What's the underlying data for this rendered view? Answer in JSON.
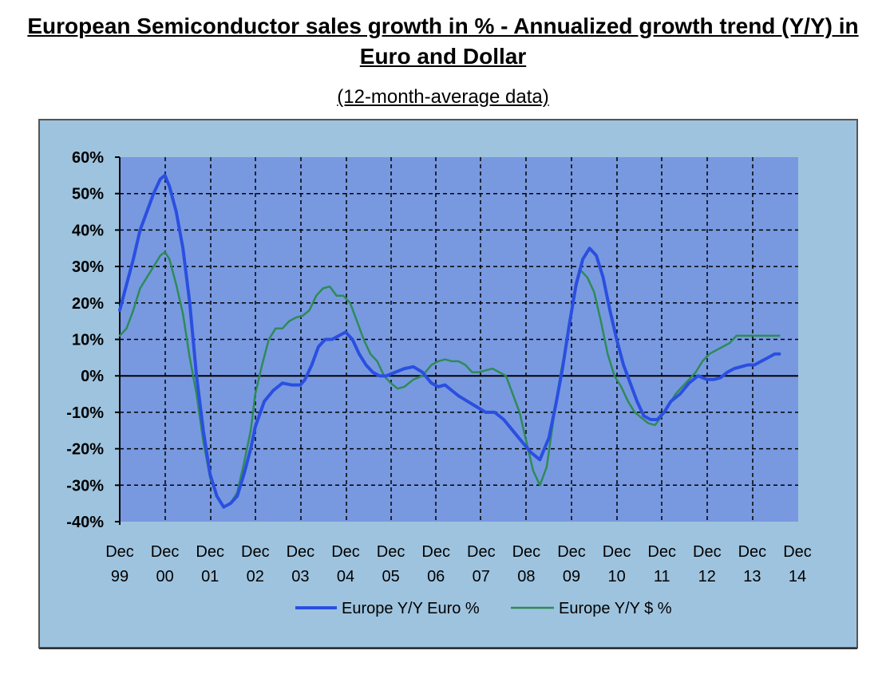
{
  "chart_data": {
    "type": "line",
    "title": "European Semiconductor sales growth in % - Annualized growth trend (Y/Y) in Euro and Dollar",
    "subtitle": "(12-month-average data)",
    "xlabel": "",
    "ylabel": "",
    "ylim": [
      -40,
      60
    ],
    "xlim": [
      0,
      15
    ],
    "y_ticks": [
      "60%",
      "50%",
      "40%",
      "30%",
      "20%",
      "10%",
      "0%",
      "-10%",
      "-20%",
      "-30%",
      "-40%"
    ],
    "x_ticks": [
      {
        "line1": "Dec",
        "line2": "99"
      },
      {
        "line1": "Dec",
        "line2": "00"
      },
      {
        "line1": "Dec",
        "line2": "01"
      },
      {
        "line1": "Dec",
        "line2": "02"
      },
      {
        "line1": "Dec",
        "line2": "03"
      },
      {
        "line1": "Dec",
        "line2": "04"
      },
      {
        "line1": "Dec",
        "line2": "05"
      },
      {
        "line1": "Dec",
        "line2": "06"
      },
      {
        "line1": "Dec",
        "line2": "07"
      },
      {
        "line1": "Dec",
        "line2": "08"
      },
      {
        "line1": "Dec",
        "line2": "09"
      },
      {
        "line1": "Dec",
        "line2": "10"
      },
      {
        "line1": "Dec",
        "line2": "11"
      },
      {
        "line1": "Dec",
        "line2": "12"
      },
      {
        "line1": "Dec",
        "line2": "13"
      },
      {
        "line1": "Dec",
        "line2": "14"
      }
    ],
    "grid": true,
    "legend_position": "bottom",
    "series": [
      {
        "name": "Europe Y/Y Euro %",
        "color": "#2a4fe0",
        "x": [
          0,
          0.15,
          0.3,
          0.45,
          0.6,
          0.75,
          0.9,
          1.0,
          1.1,
          1.25,
          1.4,
          1.55,
          1.7,
          1.85,
          2.0,
          2.15,
          2.3,
          2.45,
          2.6,
          2.75,
          2.9,
          3.0,
          3.2,
          3.4,
          3.6,
          3.8,
          4.0,
          4.1,
          4.25,
          4.4,
          4.55,
          4.7,
          4.85,
          5.0,
          5.15,
          5.3,
          5.45,
          5.6,
          5.75,
          5.9,
          6.1,
          6.3,
          6.5,
          6.7,
          6.9,
          7.05,
          7.2,
          7.35,
          7.5,
          7.7,
          7.9,
          8.1,
          8.3,
          8.5,
          8.7,
          8.9,
          9.1,
          9.3,
          9.5,
          9.65,
          9.8,
          9.95,
          10.1,
          10.25,
          10.4,
          10.55,
          10.7,
          10.85,
          11.0,
          11.15,
          11.3,
          11.45,
          11.6,
          11.75,
          11.9,
          12.05,
          12.2,
          12.4,
          12.6,
          12.8,
          13.0,
          13.15,
          13.3,
          13.45,
          13.6,
          13.75,
          13.9,
          14.05,
          14.2,
          14.35,
          14.5,
          14.6
        ],
        "values": [
          18,
          25,
          32,
          40,
          45,
          50,
          54,
          55,
          52,
          45,
          35,
          20,
          0,
          -15,
          -27,
          -33,
          -36,
          -35,
          -33,
          -27,
          -20,
          -14,
          -7,
          -4,
          -2,
          -2.5,
          -2.5,
          -1,
          3,
          8,
          10,
          10,
          11,
          12,
          10,
          6,
          3,
          1,
          0,
          0,
          1,
          2,
          2.5,
          1,
          -2,
          -3,
          -2.5,
          -4,
          -5.5,
          -7,
          -8.5,
          -10,
          -10,
          -12,
          -15,
          -18,
          -21,
          -23,
          -17,
          -8,
          2,
          14,
          25,
          32,
          35,
          33,
          27,
          18,
          10,
          3,
          -2,
          -7,
          -11,
          -12,
          -12,
          -10,
          -7,
          -5,
          -2,
          0,
          -1,
          -1,
          -0.5,
          1,
          2,
          2.5,
          3,
          3,
          4,
          5,
          6,
          6
        ]
      },
      {
        "name": "Europe Y/Y $ %",
        "color": "#2e8b57",
        "x": [
          0,
          0.15,
          0.3,
          0.45,
          0.6,
          0.75,
          0.9,
          1.0,
          1.1,
          1.25,
          1.4,
          1.55,
          1.7,
          1.85,
          2.0,
          2.15,
          2.3,
          2.45,
          2.6,
          2.75,
          2.9,
          3.0,
          3.15,
          3.3,
          3.45,
          3.6,
          3.75,
          3.9,
          4.05,
          4.2,
          4.35,
          4.5,
          4.65,
          4.8,
          4.95,
          5.1,
          5.25,
          5.4,
          5.55,
          5.7,
          5.85,
          6.0,
          6.15,
          6.3,
          6.5,
          6.7,
          6.9,
          7.05,
          7.2,
          7.35,
          7.5,
          7.65,
          7.8,
          7.95,
          8.1,
          8.25,
          8.4,
          8.55,
          8.7,
          8.85,
          9.0,
          9.15,
          9.3,
          9.45,
          9.6,
          9.75,
          9.9,
          10.05,
          10.2,
          10.35,
          10.5,
          10.65,
          10.8,
          10.95,
          11.1,
          11.25,
          11.4,
          11.55,
          11.7,
          11.85,
          12.0,
          12.15,
          12.3,
          12.45,
          12.6,
          12.75,
          12.9,
          13.05,
          13.2,
          13.35,
          13.5,
          13.65,
          13.8,
          13.95,
          14.1,
          14.25,
          14.4,
          14.6
        ],
        "values": [
          11,
          13,
          18,
          24,
          27,
          30,
          33,
          34,
          32,
          25,
          17,
          5,
          -5,
          -18,
          -28,
          -33,
          -36,
          -35,
          -32,
          -24,
          -15,
          -5,
          3,
          10,
          13,
          13,
          15,
          16,
          16.5,
          18,
          22,
          24,
          24.5,
          22,
          22,
          20,
          15,
          10,
          6,
          4,
          0,
          -2,
          -3.5,
          -3,
          -1,
          0,
          3,
          4,
          4.5,
          4,
          4,
          3,
          1,
          1,
          1.5,
          2,
          1,
          0,
          -5,
          -10,
          -18,
          -26,
          -30,
          -25,
          -12,
          0,
          10,
          22,
          29,
          27,
          23,
          15,
          6,
          0,
          -3,
          -7,
          -10,
          -11.5,
          -13,
          -13.5,
          -11,
          -8,
          -5,
          -3,
          -1,
          1,
          4,
          6,
          7,
          8,
          9,
          11,
          11,
          11,
          11,
          11,
          11,
          11
        ]
      }
    ]
  }
}
